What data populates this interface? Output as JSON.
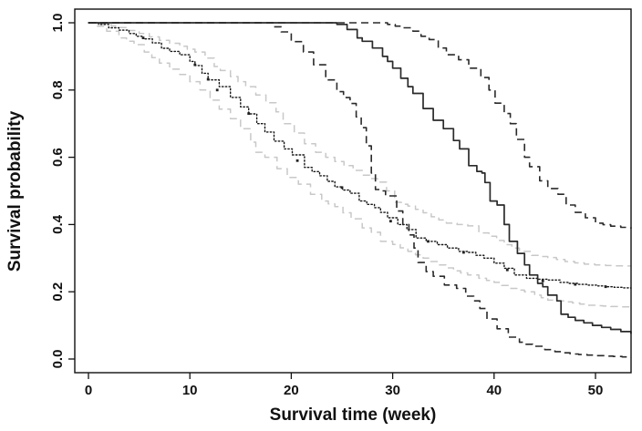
{
  "figure": {
    "title": "",
    "xlabel": "Survival time (week)",
    "ylabel": "Survival probability"
  },
  "chart_data": {
    "type": "line",
    "subtype": "kaplan-meier-survival-curves",
    "title": "",
    "xlabel": "Survival time (week)",
    "ylabel": "Survival probability",
    "xlim": [
      0,
      53.5
    ],
    "ylim": [
      0.0,
      1.0
    ],
    "x_ticks": [
      0,
      10,
      20,
      30,
      40,
      50
    ],
    "y_ticks": [
      0.0,
      0.2,
      0.4,
      0.6,
      0.8,
      1.0
    ],
    "y_tick_labels": [
      "0.0",
      "0.2",
      "0.4",
      "0.6",
      "0.8",
      "1.0"
    ],
    "grid": false,
    "legend": "none",
    "colors": {
      "black_line": "#2a2a2a",
      "dotted_line": "#161616",
      "gray_band": "#c8c8c8",
      "axis": "#111111"
    },
    "series": [
      {
        "name": "gray-upper-ci",
        "style": "dashed",
        "color_key": "gray_band",
        "width": 1.5,
        "points": [
          [
            0,
            1.0
          ],
          [
            1.5,
            0.995
          ],
          [
            3,
            0.986
          ],
          [
            5,
            0.968
          ],
          [
            7,
            0.948
          ],
          [
            9,
            0.93
          ],
          [
            10.5,
            0.913
          ],
          [
            11.5,
            0.895
          ],
          [
            12.4,
            0.87
          ],
          [
            13,
            0.858
          ],
          [
            14,
            0.84
          ],
          [
            15.5,
            0.81
          ],
          [
            16.5,
            0.785
          ],
          [
            17.5,
            0.762
          ],
          [
            18.5,
            0.735
          ],
          [
            19.2,
            0.7
          ],
          [
            20.3,
            0.672
          ],
          [
            21.3,
            0.64
          ],
          [
            22.4,
            0.615
          ],
          [
            23.4,
            0.6
          ],
          [
            25.2,
            0.575
          ],
          [
            27,
            0.547
          ],
          [
            28.5,
            0.526
          ],
          [
            29.4,
            0.5
          ],
          [
            30.2,
            0.466
          ],
          [
            31.5,
            0.455
          ],
          [
            33,
            0.435
          ],
          [
            33.8,
            0.423
          ],
          [
            35.3,
            0.404
          ],
          [
            37.4,
            0.396
          ],
          [
            38.5,
            0.375
          ],
          [
            39.5,
            0.365
          ],
          [
            41,
            0.34
          ],
          [
            42.5,
            0.32
          ],
          [
            43.7,
            0.308
          ],
          [
            45.3,
            0.302
          ],
          [
            47,
            0.29
          ],
          [
            48.9,
            0.282
          ],
          [
            51,
            0.278
          ],
          [
            53.5,
            0.276
          ]
        ]
      },
      {
        "name": "gray-lower-ci",
        "style": "dashed",
        "color_key": "gray_band",
        "width": 1.5,
        "points": [
          [
            0,
            1.0
          ],
          [
            0.8,
            0.99
          ],
          [
            1.8,
            0.975
          ],
          [
            3,
            0.955
          ],
          [
            4.5,
            0.935
          ],
          [
            5.5,
            0.913
          ],
          [
            7,
            0.88
          ],
          [
            8,
            0.862
          ],
          [
            9,
            0.846
          ],
          [
            10,
            0.825
          ],
          [
            11,
            0.8
          ],
          [
            12,
            0.77
          ],
          [
            12.9,
            0.743
          ],
          [
            14,
            0.715
          ],
          [
            15,
            0.685
          ],
          [
            16,
            0.645
          ],
          [
            16.5,
            0.615
          ],
          [
            17.4,
            0.6
          ],
          [
            18.6,
            0.566
          ],
          [
            19.6,
            0.54
          ],
          [
            20.7,
            0.52
          ],
          [
            21.9,
            0.49
          ],
          [
            23,
            0.47
          ],
          [
            24.3,
            0.453
          ],
          [
            25.9,
            0.417
          ],
          [
            27,
            0.39
          ],
          [
            27.9,
            0.377
          ],
          [
            28.8,
            0.35
          ],
          [
            30,
            0.341
          ],
          [
            31.5,
            0.32
          ],
          [
            33,
            0.3
          ],
          [
            34.5,
            0.28
          ],
          [
            36,
            0.262
          ],
          [
            37.4,
            0.25
          ],
          [
            38.5,
            0.24
          ],
          [
            40,
            0.228
          ],
          [
            41.5,
            0.21
          ],
          [
            43,
            0.2
          ],
          [
            44,
            0.19
          ],
          [
            45.3,
            0.175
          ],
          [
            47,
            0.17
          ],
          [
            49.2,
            0.16
          ],
          [
            51.5,
            0.156
          ],
          [
            53.5,
            0.154
          ]
        ]
      },
      {
        "name": "km-dotted",
        "style": "dotted",
        "color_key": "dotted_line",
        "width": 1.4,
        "points": [
          [
            0,
            1.0
          ],
          [
            1,
            0.995
          ],
          [
            2,
            0.985
          ],
          [
            3,
            0.978
          ],
          [
            4,
            0.968
          ],
          [
            5.4,
            0.952
          ],
          [
            6.3,
            0.94
          ],
          [
            7.2,
            0.924
          ],
          [
            8,
            0.915
          ],
          [
            9,
            0.905
          ],
          [
            10,
            0.885
          ],
          [
            10.5,
            0.873
          ],
          [
            11.2,
            0.85
          ],
          [
            11.8,
            0.83
          ],
          [
            12.9,
            0.81
          ],
          [
            14,
            0.778
          ],
          [
            15,
            0.75
          ],
          [
            15.8,
            0.729
          ],
          [
            16.6,
            0.7
          ],
          [
            17.4,
            0.675
          ],
          [
            18.3,
            0.648
          ],
          [
            19.3,
            0.625
          ],
          [
            20.1,
            0.607
          ],
          [
            21.3,
            0.57
          ],
          [
            22.8,
            0.545
          ],
          [
            24.3,
            0.512
          ],
          [
            25.8,
            0.493
          ],
          [
            26.7,
            0.47
          ],
          [
            28.2,
            0.45
          ],
          [
            28.8,
            0.436
          ],
          [
            29.5,
            0.42
          ],
          [
            30.5,
            0.4
          ],
          [
            31.4,
            0.385
          ],
          [
            32.3,
            0.36
          ],
          [
            33.3,
            0.35
          ],
          [
            34.4,
            0.34
          ],
          [
            35.4,
            0.33
          ],
          [
            36.5,
            0.32
          ],
          [
            37.4,
            0.317
          ],
          [
            39,
            0.3
          ],
          [
            40,
            0.285
          ],
          [
            41,
            0.27
          ],
          [
            42,
            0.25
          ],
          [
            43.2,
            0.24
          ],
          [
            45.3,
            0.235
          ],
          [
            46.5,
            0.228
          ],
          [
            48.3,
            0.222
          ],
          [
            51,
            0.215
          ],
          [
            53.5,
            0.21
          ]
        ]
      },
      {
        "name": "km-upper-ci",
        "style": "dashed",
        "color_key": "black_line",
        "width": 1.6,
        "points": [
          [
            0,
            1.0
          ],
          [
            28.5,
            1.0
          ],
          [
            29.5,
            0.995
          ],
          [
            31,
            0.985
          ],
          [
            32,
            0.975
          ],
          [
            32.8,
            0.96
          ],
          [
            33.6,
            0.95
          ],
          [
            34.5,
            0.925
          ],
          [
            35.3,
            0.905
          ],
          [
            36.5,
            0.89
          ],
          [
            37.5,
            0.865
          ],
          [
            38.7,
            0.837
          ],
          [
            39.5,
            0.8
          ],
          [
            40.1,
            0.761
          ],
          [
            41,
            0.73
          ],
          [
            41.6,
            0.7
          ],
          [
            42.2,
            0.653
          ],
          [
            43,
            0.6
          ],
          [
            43.5,
            0.572
          ],
          [
            44.5,
            0.53
          ],
          [
            45.3,
            0.507
          ],
          [
            46.3,
            0.49
          ],
          [
            47.1,
            0.458
          ],
          [
            48,
            0.436
          ],
          [
            49,
            0.42
          ],
          [
            50,
            0.404
          ],
          [
            51.5,
            0.395
          ],
          [
            53.5,
            0.388
          ]
        ]
      },
      {
        "name": "km-lower-ci",
        "style": "dashed",
        "color_key": "black_line",
        "width": 1.6,
        "points": [
          [
            0,
            1.0
          ],
          [
            17.5,
            1.0
          ],
          [
            18.3,
            0.988
          ],
          [
            19,
            0.973
          ],
          [
            20,
            0.944
          ],
          [
            21.2,
            0.913
          ],
          [
            22.2,
            0.875
          ],
          [
            23.4,
            0.83
          ],
          [
            24.5,
            0.795
          ],
          [
            25.8,
            0.76
          ],
          [
            26.4,
            0.72
          ],
          [
            26.9,
            0.688
          ],
          [
            27.4,
            0.634
          ],
          [
            27.9,
            0.553
          ],
          [
            28.3,
            0.504
          ],
          [
            29,
            0.5
          ],
          [
            29.3,
            0.485
          ],
          [
            30.4,
            0.44
          ],
          [
            31,
            0.4
          ],
          [
            31.6,
            0.369
          ],
          [
            32.1,
            0.33
          ],
          [
            32.5,
            0.287
          ],
          [
            33.3,
            0.26
          ],
          [
            34,
            0.246
          ],
          [
            35.1,
            0.22
          ],
          [
            36.3,
            0.21
          ],
          [
            37.2,
            0.187
          ],
          [
            38,
            0.173
          ],
          [
            38.6,
            0.15
          ],
          [
            39.3,
            0.119
          ],
          [
            40.3,
            0.09
          ],
          [
            41.4,
            0.065
          ],
          [
            42.5,
            0.05
          ],
          [
            43.8,
            0.038
          ],
          [
            45,
            0.028
          ],
          [
            46,
            0.022
          ],
          [
            47.5,
            0.015
          ],
          [
            50,
            0.01
          ],
          [
            53.5,
            0.005
          ]
        ]
      },
      {
        "name": "km-solid",
        "style": "solid",
        "color_key": "black_line",
        "width": 1.7,
        "points": [
          [
            0,
            1.0
          ],
          [
            17,
            1.0
          ],
          [
            24,
            1.0
          ],
          [
            24.5,
            0.995
          ],
          [
            25.5,
            0.98
          ],
          [
            26.5,
            0.955
          ],
          [
            27,
            0.945
          ],
          [
            28,
            0.925
          ],
          [
            29,
            0.9
          ],
          [
            29.5,
            0.885
          ],
          [
            30,
            0.865
          ],
          [
            30.8,
            0.835
          ],
          [
            31.5,
            0.81
          ],
          [
            32,
            0.79
          ],
          [
            33,
            0.745
          ],
          [
            34,
            0.71
          ],
          [
            35,
            0.685
          ],
          [
            36,
            0.65
          ],
          [
            36.6,
            0.625
          ],
          [
            37.5,
            0.575
          ],
          [
            38.3,
            0.558
          ],
          [
            38.8,
            0.553
          ],
          [
            39.1,
            0.525
          ],
          [
            39.6,
            0.47
          ],
          [
            40.3,
            0.458
          ],
          [
            41,
            0.4
          ],
          [
            41.5,
            0.35
          ],
          [
            42.3,
            0.314
          ],
          [
            43,
            0.28
          ],
          [
            43.5,
            0.25
          ],
          [
            44.3,
            0.225
          ],
          [
            44.8,
            0.215
          ],
          [
            45.3,
            0.19
          ],
          [
            46.2,
            0.173
          ],
          [
            46.6,
            0.133
          ],
          [
            48,
            0.115
          ],
          [
            49.7,
            0.1
          ],
          [
            51.5,
            0.088
          ],
          [
            53.5,
            0.075
          ]
        ]
      }
    ],
    "censor_marks": {
      "on_series": "km-dotted",
      "points": [
        [
          5.4,
          0.955
        ],
        [
          10.5,
          0.875
        ],
        [
          11.8,
          0.832
        ],
        [
          12.7,
          0.8
        ],
        [
          15.8,
          0.73
        ],
        [
          20.6,
          0.59
        ],
        [
          25,
          0.51
        ],
        [
          29.8,
          0.41
        ],
        [
          33.5,
          0.35
        ],
        [
          37,
          0.317
        ],
        [
          41.3,
          0.265
        ],
        [
          44.8,
          0.232
        ],
        [
          48,
          0.222
        ],
        [
          51,
          0.215
        ]
      ]
    }
  }
}
